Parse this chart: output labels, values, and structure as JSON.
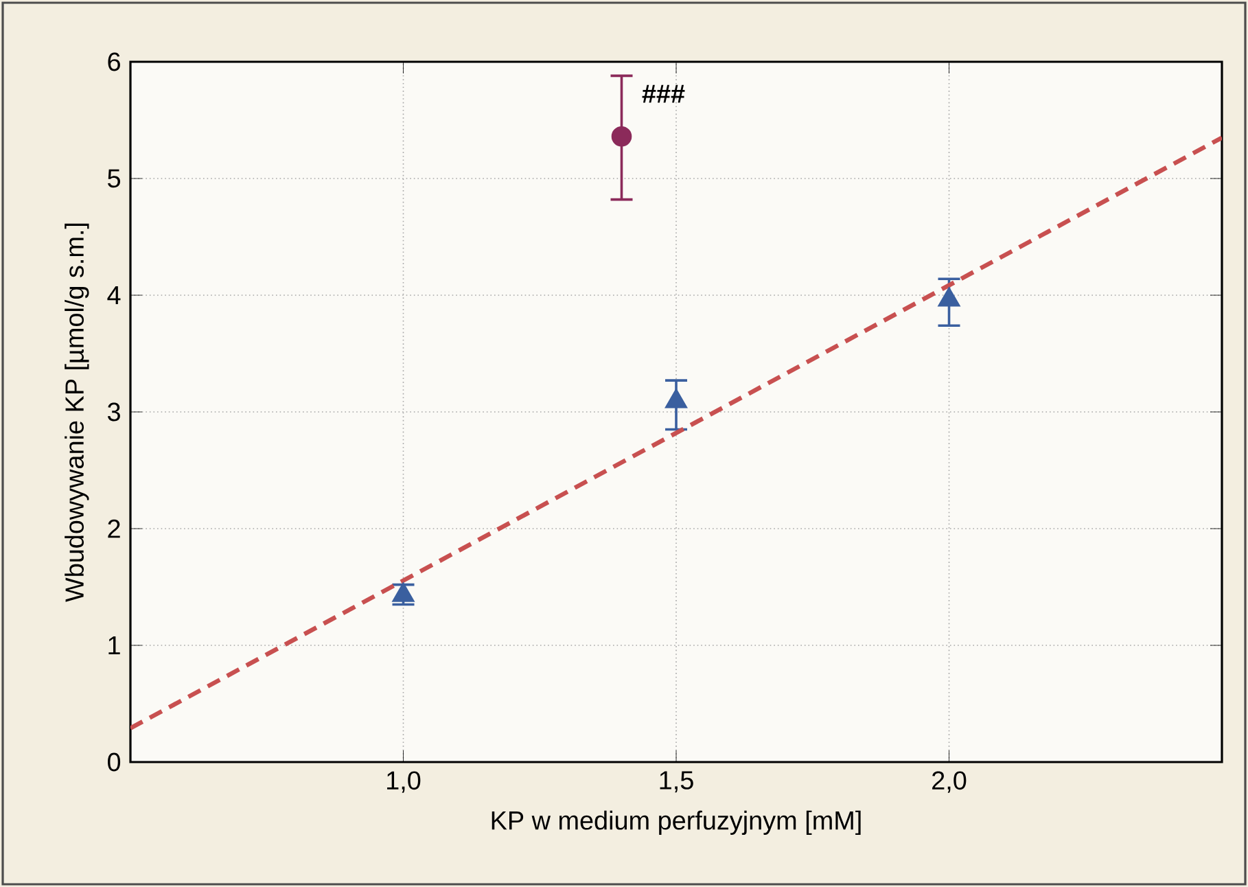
{
  "chart_data": {
    "type": "scatter",
    "xlabel": "KP w medium perfuzyjnym [mM]",
    "ylabel": "Wbudowywanie KP [µmol/g s.m.]",
    "xlim": [
      0.5,
      2.5
    ],
    "ylim": [
      0,
      6
    ],
    "xticks": [
      {
        "value": 1.0,
        "label": "1,0"
      },
      {
        "value": 1.5,
        "label": "1,5"
      },
      {
        "value": 2.0,
        "label": "2,0"
      }
    ],
    "yticks": [
      0,
      1,
      2,
      3,
      4,
      5,
      6
    ],
    "grid": true,
    "series": [
      {
        "color": "#3a5f9f",
        "marker": "triangle",
        "x": [
          1.0,
          1.5,
          2.0
        ],
        "values": [
          1.43,
          3.09,
          3.96
        ],
        "errors": [
          [
            1.35,
            1.52
          ],
          [
            2.85,
            3.27
          ],
          [
            3.74,
            4.14
          ]
        ]
      },
      {
        "color": "#8b2a5a",
        "marker": "circle",
        "x": [
          1.4
        ],
        "values": [
          5.36
        ],
        "errors": [
          [
            4.82,
            5.88
          ]
        ]
      },
      {
        "type": "line",
        "color": "#c85050",
        "marker": "none",
        "line_style": "dashed",
        "x": [
          0.5,
          2.5
        ],
        "values": [
          0.29,
          5.35
        ]
      }
    ],
    "annotations": [
      {
        "text": "###",
        "x": 1.4,
        "y": 5.88
      }
    ]
  }
}
